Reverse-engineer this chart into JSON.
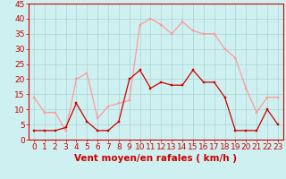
{
  "hours": [
    0,
    1,
    2,
    3,
    4,
    5,
    6,
    7,
    8,
    9,
    10,
    11,
    12,
    13,
    14,
    15,
    16,
    17,
    18,
    19,
    20,
    21,
    22,
    23
  ],
  "vent_moyen": [
    3,
    3,
    3,
    4,
    12,
    6,
    3,
    3,
    6,
    20,
    23,
    17,
    19,
    18,
    18,
    23,
    19,
    19,
    14,
    3,
    3,
    3,
    10,
    5
  ],
  "rafales": [
    14,
    9,
    9,
    3,
    20,
    22,
    7,
    11,
    12,
    13,
    38,
    40,
    38,
    35,
    39,
    36,
    35,
    35,
    30,
    27,
    17,
    9,
    14,
    14
  ],
  "bg_color": "#cff0f0",
  "grid_color": "#aad4d4",
  "line_moyen_color": "#cc0000",
  "line_rafales_color": "#ff9999",
  "xlabel": "Vent moyen/en rafales ( km/h )",
  "ylim": [
    0,
    45
  ],
  "yticks": [
    0,
    5,
    10,
    15,
    20,
    25,
    30,
    35,
    40,
    45
  ],
  "xticks": [
    0,
    1,
    2,
    3,
    4,
    5,
    6,
    7,
    8,
    9,
    10,
    11,
    12,
    13,
    14,
    15,
    16,
    17,
    18,
    19,
    20,
    21,
    22,
    23
  ],
  "tick_fontsize": 6.5,
  "xlabel_fontsize": 7.5
}
